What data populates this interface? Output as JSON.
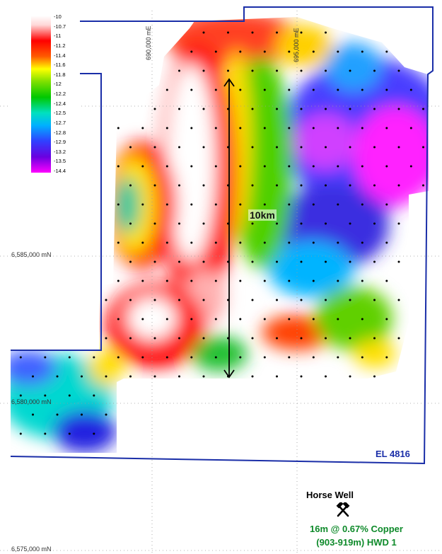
{
  "legend": {
    "values": [
      "-10",
      "-10.7",
      "-11",
      "-11.2",
      "-11.4",
      "-11.6",
      "-11.8",
      "-12",
      "-12.2",
      "-12.4",
      "-12.5",
      "-12.7",
      "-12.8",
      "-12.9",
      "-13.2",
      "-13.5",
      "-14.4"
    ]
  },
  "grid": {
    "easting_690": "690,000 mE",
    "easting_695": "695,000 mE",
    "northing_6585": "6,585,000 mN",
    "northing_6580": "6,580,000 mN",
    "northing_6575": "6,575,000 mN"
  },
  "scale_bar": {
    "label": "10km"
  },
  "licence": {
    "label": "EL 4816"
  },
  "prospect": {
    "name": "Horse Well",
    "intercept": "16m @ 0.67% Copper",
    "hole": "(903-919m) HWD 1",
    "icon": "crossed-hammers-icon"
  },
  "colors": {
    "boundary": "#1a2ea8",
    "intercept_text": "#0e8a2a"
  }
}
